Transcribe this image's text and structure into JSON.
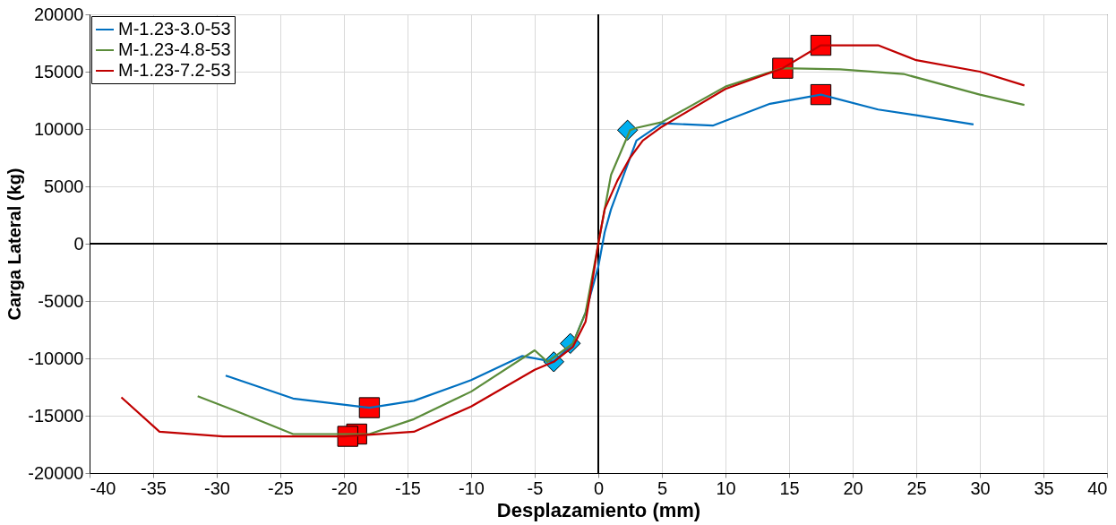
{
  "chart_data": {
    "type": "line",
    "xlabel": "Desplazamiento (mm)",
    "ylabel": "Carga Lateral (kg)",
    "xlim": [
      -40,
      40
    ],
    "xticks": [
      -40,
      -35,
      -30,
      -25,
      -20,
      -15,
      -10,
      -5,
      0,
      5,
      10,
      15,
      20,
      25,
      30,
      35,
      40
    ],
    "ylim": [
      -20000,
      20000
    ],
    "yticks": [
      -20000,
      -15000,
      -10000,
      -5000,
      0,
      5000,
      10000,
      15000,
      20000
    ],
    "grid": true,
    "legend": "top left",
    "line_style": "solid",
    "series": [
      {
        "name": "M-1.23-3.0-53",
        "color": "#0070c0",
        "x": [
          -29.3,
          -24,
          -18,
          -14.5,
          -10,
          -6,
          -3.5,
          -2,
          -1,
          0,
          0.5,
          1,
          2,
          3,
          5,
          9,
          13.5,
          17.5,
          22,
          25,
          29.5
        ],
        "values": [
          -11500,
          -13500,
          -14300,
          -13700,
          -11900,
          -9800,
          -10300,
          -8700,
          -6000,
          -2000,
          1000,
          3000,
          6000,
          9000,
          10500,
          10300,
          12200,
          13000,
          11700,
          11200,
          10400
        ]
      },
      {
        "name": "M-1.23-4.8-53",
        "color": "#5b8c3a",
        "x": [
          -31.5,
          -28,
          -24,
          -18,
          -14.5,
          -10,
          -5,
          -4,
          -2,
          -1,
          0,
          1,
          2.5,
          3,
          5,
          10,
          14.5,
          19,
          24,
          30,
          33.5
        ],
        "values": [
          -13300,
          -14800,
          -16600,
          -16600,
          -15300,
          -12900,
          -9300,
          -10300,
          -8700,
          -6000,
          0,
          6000,
          9900,
          10100,
          10600,
          13700,
          15300,
          15200,
          14800,
          13000,
          12100
        ]
      },
      {
        "name": "M-1.23-7.2-53",
        "color": "#c00000",
        "x": [
          -37.5,
          -34.5,
          -29.5,
          -20,
          -14.5,
          -10,
          -5,
          -3.5,
          -2,
          -1,
          -0.5,
          0,
          0.5,
          1.5,
          2.5,
          3.5,
          5,
          10,
          14.5,
          17.5,
          22,
          25,
          30,
          33.5
        ],
        "values": [
          -13400,
          -16400,
          -16800,
          -16800,
          -16400,
          -14200,
          -11000,
          -10300,
          -9000,
          -6800,
          -3500,
          0,
          3000,
          5500,
          7500,
          9000,
          10200,
          13500,
          15300,
          17300,
          17300,
          16000,
          15000,
          13800
        ]
      },
      {
        "type": "scatter",
        "marker": "square",
        "color": "#ff0000",
        "x": [
          -18,
          -19,
          -19.7,
          14.5,
          17.5,
          17.5
        ],
        "values": [
          -14300,
          -16600,
          -16800,
          15300,
          17300,
          13000
        ]
      },
      {
        "type": "scatter",
        "marker": "diamond",
        "color": "#00b0f0",
        "x": [
          -3.5,
          -2.2,
          2.3
        ],
        "values": [
          -10300,
          -8700,
          9900
        ]
      }
    ]
  }
}
